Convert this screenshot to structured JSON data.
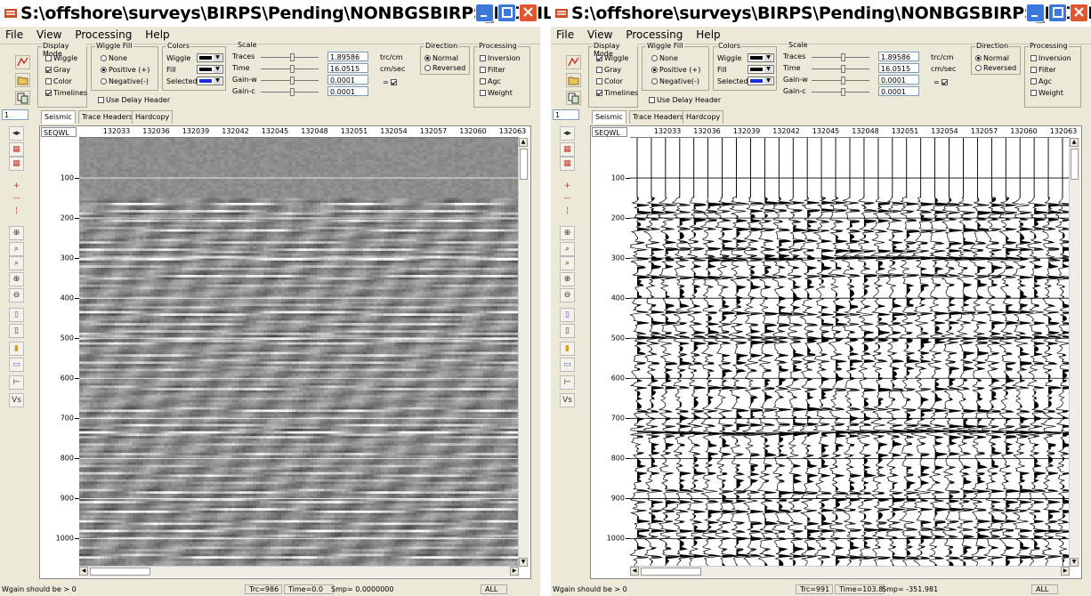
{
  "windows": [
    {
      "id": "gray",
      "title": "S:\\offshore\\surveys\\BIRPS\\Pending\\NONBGSBIRPS_MOBIL\\G...",
      "menu": [
        "File",
        "View",
        "Processing",
        "Help"
      ],
      "display_mode": {
        "label": "Display Mode",
        "items": [
          {
            "label": "Wiggle",
            "checked": false
          },
          {
            "label": "Gray",
            "checked": true
          },
          {
            "label": "Color",
            "checked": false
          },
          {
            "label": "Timelines",
            "checked": true
          }
        ]
      },
      "wiggle_fill": {
        "label": "Wiggle Fill",
        "items": [
          {
            "label": "None",
            "selected": false
          },
          {
            "label": "Positive (+)",
            "selected": true
          },
          {
            "label": "Negative(-)",
            "selected": false
          }
        ]
      },
      "use_delay_header": {
        "label": "Use Delay Header",
        "checked": false
      },
      "colors": {
        "label": "Colors",
        "items": [
          {
            "label": "Wiggle",
            "color": "#000000"
          },
          {
            "label": "Fill",
            "color": "#000000"
          },
          {
            "label": "Selected",
            "color": "#1a2fe0"
          }
        ]
      },
      "scale": {
        "label": "Scale",
        "rows": [
          {
            "label": "Traces",
            "value": "1.89586",
            "unit": "trc/cm",
            "level": 0.55
          },
          {
            "label": "Time",
            "value": "16.0515",
            "unit": "cm/sec",
            "level": 0.55
          },
          {
            "label": "Gain-w",
            "value": "0.0001",
            "unit": "",
            "level": 0.55
          },
          {
            "label": "Gain-c",
            "value": "0.0001",
            "unit": "",
            "level": 0.55
          }
        ],
        "eq_label": "= ",
        "eq_checked": true
      },
      "direction": {
        "label": "Direction",
        "items": [
          {
            "label": "Normal",
            "selected": true
          },
          {
            "label": "Reversed",
            "selected": false
          }
        ]
      },
      "processing": {
        "label": "Processing",
        "items": [
          {
            "label": "Inversion",
            "checked": false
          },
          {
            "label": "Filter",
            "checked": false
          },
          {
            "label": "Agc",
            "checked": false
          },
          {
            "label": "Weight",
            "checked": false
          }
        ]
      },
      "page_number": "1",
      "tabs": [
        "Seismic",
        "Trace Headers",
        "Hardcopy"
      ],
      "corner_label": "SEQWL",
      "trace_labels": [
        "132033",
        "132036",
        "132039",
        "132042",
        "132045",
        "132048",
        "132051",
        "132054",
        "132057",
        "132060",
        "132063"
      ],
      "time_labels": [
        "100",
        "200",
        "300",
        "400",
        "500",
        "600",
        "700",
        "800",
        "900",
        "1000"
      ],
      "status": {
        "message": "Wgain should be > 0",
        "trc": "Trc=986",
        "time": "Time=0.0",
        "smp": "Smp= 0.0000000",
        "mode": "ALL"
      }
    },
    {
      "id": "wiggle",
      "title": "S:\\offshore\\surveys\\BIRPS\\Pending\\NONBGSBIRPS_MOBIL\\G...",
      "menu": [
        "File",
        "View",
        "Processing",
        "Help"
      ],
      "display_mode": {
        "label": "Display Mode",
        "items": [
          {
            "label": "Wiggle",
            "checked": true
          },
          {
            "label": "Gray",
            "checked": false
          },
          {
            "label": "Color",
            "checked": false
          },
          {
            "label": "Timelines",
            "checked": true
          }
        ]
      },
      "wiggle_fill": {
        "label": "Wiggle Fill",
        "items": [
          {
            "label": "None",
            "selected": false
          },
          {
            "label": "Positive (+)",
            "selected": true
          },
          {
            "label": "Negative(-)",
            "selected": false
          }
        ]
      },
      "use_delay_header": {
        "label": "Use Delay Header",
        "checked": false
      },
      "colors": {
        "label": "Colors",
        "items": [
          {
            "label": "Wiggle",
            "color": "#000000"
          },
          {
            "label": "Fill",
            "color": "#000000"
          },
          {
            "label": "Selected",
            "color": "#1a2fe0"
          }
        ]
      },
      "scale": {
        "label": "Scale",
        "rows": [
          {
            "label": "Traces",
            "value": "1.89586",
            "unit": "trc/cm",
            "level": 0.55
          },
          {
            "label": "Time",
            "value": "16.0515",
            "unit": "cm/sec",
            "level": 0.55
          },
          {
            "label": "Gain-w",
            "value": "0.0001",
            "unit": "",
            "level": 0.55
          },
          {
            "label": "Gain-c",
            "value": "0.0001",
            "unit": "",
            "level": 0.55
          }
        ],
        "eq_label": "= ",
        "eq_checked": true
      },
      "direction": {
        "label": "Direction",
        "items": [
          {
            "label": "Normal",
            "selected": true
          },
          {
            "label": "Reversed",
            "selected": false
          }
        ]
      },
      "processing": {
        "label": "Processing",
        "items": [
          {
            "label": "Inversion",
            "checked": false
          },
          {
            "label": "Filter",
            "checked": false
          },
          {
            "label": "Agc",
            "checked": false
          },
          {
            "label": "Weight",
            "checked": false
          }
        ]
      },
      "page_number": "1",
      "tabs": [
        "Seismic",
        "Trace Headers",
        "Hardcopy"
      ],
      "corner_label": "SEQWL",
      "trace_labels": [
        "132033",
        "132036",
        "132039",
        "132042",
        "132045",
        "132048",
        "132051",
        "132054",
        "132057",
        "132060",
        "132063"
      ],
      "time_labels": [
        "100",
        "200",
        "300",
        "400",
        "500",
        "600",
        "700",
        "800",
        "900",
        "1000"
      ],
      "status": {
        "message": "Wgain should be > 0",
        "trc": "Trc=991",
        "time": "Time=103.8",
        "smp": "Smp= -351.981",
        "mode": "ALL"
      }
    }
  ],
  "left_tool_icons": [
    "page-next-icon",
    "zoom-trace-icon",
    "zoom-trace-2-icon",
    "cursor-cross-radio-icon",
    "cursor-hline-radio-icon",
    "cursor-vline-radio-icon",
    "zoom-in-icon",
    "zoom-box-icon",
    "zoom-reset-icon",
    "zoom-in-2-icon",
    "zoom-out-icon",
    "pick-icon",
    "mark-icon",
    "color-bar-icon",
    "spectrum-icon",
    "export-icon",
    "velocity-icon"
  ],
  "colors": {
    "title_close": "#e0562f",
    "title_button": "#3c78d8",
    "window_bg": "#ece9d8"
  }
}
